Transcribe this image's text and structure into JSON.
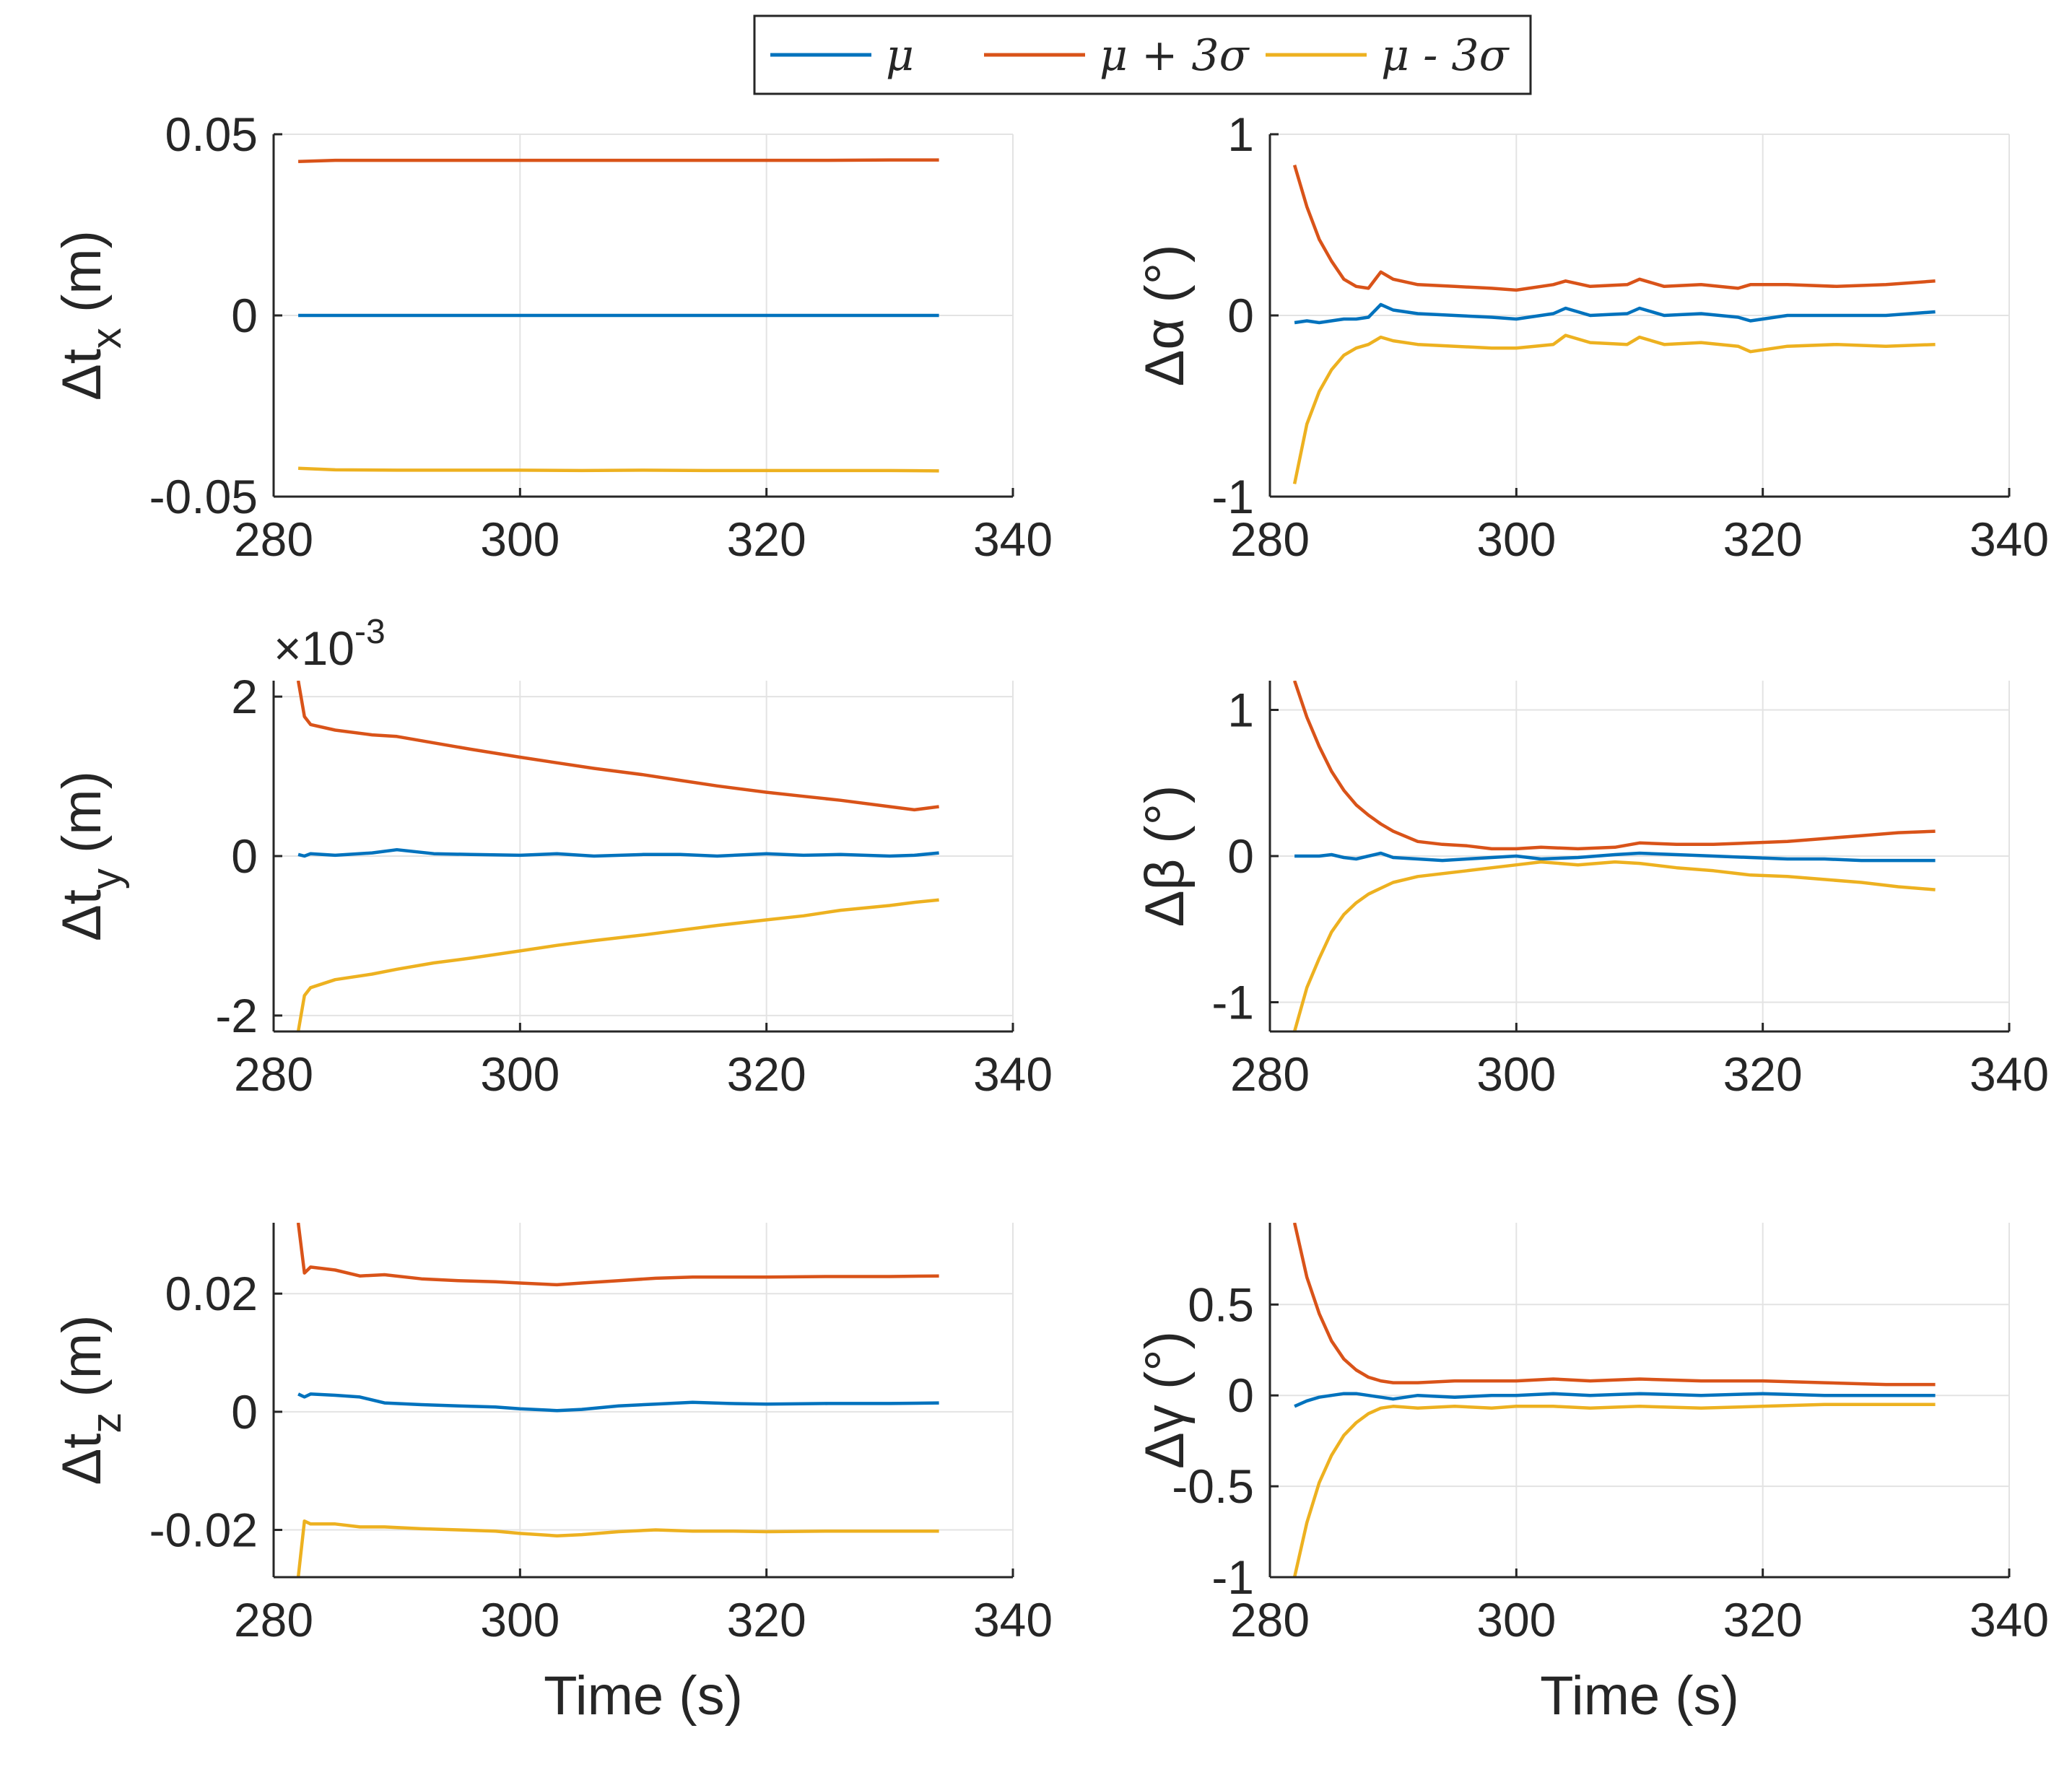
{
  "colors": {
    "mu": "#0072bd",
    "plus": "#d95319",
    "minus": "#edb120",
    "grid": "#e3e3e3",
    "axis": "#262626"
  },
  "legend": {
    "entries": [
      {
        "label": "μ",
        "color": "#0072bd"
      },
      {
        "label": "μ + 3σ",
        "color": "#d95319"
      },
      {
        "label": "μ - 3σ",
        "color": "#edb120"
      }
    ]
  },
  "chart_data": [
    {
      "type": "line",
      "id": "tx",
      "ylabel": "Δt",
      "ylabel_sub": "x",
      "ylabel_unit": " (m)",
      "xlabel": "",
      "xlim": [
        280,
        340
      ],
      "xticks": [
        "280",
        "300",
        "320",
        "340"
      ],
      "ylim": [
        -0.05,
        0.05
      ],
      "yticks": [
        -0.05,
        0,
        0.05
      ],
      "ytick_labels": [
        "-0.05",
        "0",
        "0.05"
      ],
      "grid": true,
      "exponent": "",
      "x": [
        282,
        285,
        290,
        295,
        300,
        305,
        310,
        315,
        320,
        325,
        330,
        334
      ],
      "series": [
        {
          "name": "μ + 3σ",
          "values": [
            0.0425,
            0.0428,
            0.0428,
            0.0428,
            0.0428,
            0.0428,
            0.0428,
            0.0428,
            0.0428,
            0.0428,
            0.0429,
            0.0429
          ]
        },
        {
          "name": "μ",
          "values": [
            0,
            0,
            0,
            0,
            0,
            0,
            0,
            0,
            0,
            0,
            0,
            0
          ]
        },
        {
          "name": "μ - 3σ",
          "values": [
            -0.0422,
            -0.0426,
            -0.0427,
            -0.0427,
            -0.0427,
            -0.0428,
            -0.0427,
            -0.0428,
            -0.0428,
            -0.0428,
            -0.0428,
            -0.0429
          ]
        }
      ]
    },
    {
      "type": "line",
      "id": "alpha",
      "ylabel": "Δα (°)",
      "ylabel_sub": "",
      "ylabel_unit": "",
      "xlabel": "",
      "xlim": [
        280,
        340
      ],
      "xticks": [
        "280",
        "300",
        "320",
        "340"
      ],
      "ylim": [
        -1,
        1
      ],
      "yticks": [
        -1,
        0,
        1
      ],
      "ytick_labels": [
        "-1",
        "0",
        "1"
      ],
      "grid": true,
      "exponent": "",
      "x": [
        282,
        283,
        284,
        285,
        286,
        287,
        288,
        289,
        290,
        292,
        295,
        298,
        300,
        303,
        304,
        306,
        309,
        310,
        312,
        315,
        318,
        319,
        322,
        326,
        330,
        334
      ],
      "series": [
        {
          "name": "μ + 3σ",
          "values": [
            0.83,
            0.6,
            0.42,
            0.3,
            0.2,
            0.16,
            0.15,
            0.24,
            0.2,
            0.17,
            0.16,
            0.15,
            0.14,
            0.17,
            0.19,
            0.16,
            0.17,
            0.2,
            0.16,
            0.17,
            0.15,
            0.17,
            0.17,
            0.16,
            0.17,
            0.19
          ]
        },
        {
          "name": "μ",
          "values": [
            -0.04,
            -0.03,
            -0.04,
            -0.03,
            -0.02,
            -0.02,
            -0.01,
            0.06,
            0.03,
            0.01,
            0.0,
            -0.01,
            -0.02,
            0.01,
            0.04,
            0.0,
            0.01,
            0.04,
            0.0,
            0.01,
            -0.01,
            -0.03,
            0.0,
            0.0,
            0.0,
            0.02
          ]
        },
        {
          "name": "μ - 3σ",
          "values": [
            -0.93,
            -0.6,
            -0.42,
            -0.3,
            -0.22,
            -0.18,
            -0.16,
            -0.12,
            -0.14,
            -0.16,
            -0.17,
            -0.18,
            -0.18,
            -0.16,
            -0.11,
            -0.15,
            -0.16,
            -0.12,
            -0.16,
            -0.15,
            -0.17,
            -0.2,
            -0.17,
            -0.16,
            -0.17,
            -0.16
          ]
        }
      ]
    },
    {
      "type": "line",
      "id": "ty",
      "ylabel": "Δt",
      "ylabel_sub": "y",
      "ylabel_unit": " (m)",
      "xlabel": "",
      "xlim": [
        280,
        340
      ],
      "xticks": [
        "280",
        "300",
        "320",
        "340"
      ],
      "ylim": [
        -2.2,
        2.2
      ],
      "yticks": [
        -2,
        0,
        2
      ],
      "ytick_labels": [
        "-2",
        "0",
        "2"
      ],
      "grid": true,
      "exponent": "×10-3",
      "x": [
        282,
        282.5,
        283,
        285,
        288,
        290,
        293,
        296,
        300,
        303,
        306,
        310,
        313,
        316,
        320,
        323,
        326,
        330,
        332,
        334
      ],
      "series": [
        {
          "name": "μ + 3σ",
          "values": [
            2.2,
            1.75,
            1.65,
            1.58,
            1.52,
            1.5,
            1.42,
            1.34,
            1.24,
            1.17,
            1.1,
            1.02,
            0.95,
            0.88,
            0.8,
            0.75,
            0.7,
            0.62,
            0.58,
            0.62
          ]
        },
        {
          "name": "μ",
          "values": [
            0.02,
            0.0,
            0.03,
            0.01,
            0.04,
            0.08,
            0.03,
            0.02,
            0.01,
            0.03,
            0.0,
            0.02,
            0.02,
            0.0,
            0.03,
            0.01,
            0.02,
            0.0,
            0.01,
            0.04
          ]
        },
        {
          "name": "μ - 3σ",
          "values": [
            -2.2,
            -1.75,
            -1.65,
            -1.55,
            -1.48,
            -1.42,
            -1.34,
            -1.28,
            -1.19,
            -1.12,
            -1.06,
            -0.99,
            -0.93,
            -0.87,
            -0.8,
            -0.75,
            -0.68,
            -0.62,
            -0.58,
            -0.55
          ]
        }
      ]
    },
    {
      "type": "line",
      "id": "beta",
      "ylabel": "Δβ (°)",
      "ylabel_sub": "",
      "ylabel_unit": "",
      "xlabel": "",
      "xlim": [
        280,
        340
      ],
      "xticks": [
        "280",
        "300",
        "320",
        "340"
      ],
      "ylim": [
        -1.2,
        1.2
      ],
      "yticks": [
        -1,
        0,
        1
      ],
      "ytick_labels": [
        "-1",
        "0",
        "1"
      ],
      "grid": true,
      "exponent": "",
      "x": [
        282,
        283,
        284,
        285,
        286,
        287,
        288,
        289,
        290,
        292,
        294,
        296,
        298,
        300,
        302,
        305,
        308,
        310,
        313,
        316,
        319,
        322,
        325,
        328,
        331,
        334
      ],
      "series": [
        {
          "name": "μ + 3σ",
          "values": [
            1.2,
            0.95,
            0.75,
            0.58,
            0.45,
            0.35,
            0.28,
            0.22,
            0.17,
            0.1,
            0.08,
            0.07,
            0.05,
            0.05,
            0.06,
            0.05,
            0.06,
            0.09,
            0.08,
            0.08,
            0.09,
            0.1,
            0.12,
            0.14,
            0.16,
            0.17
          ]
        },
        {
          "name": "μ",
          "values": [
            0.0,
            0.0,
            0.0,
            0.01,
            -0.01,
            -0.02,
            0.0,
            0.02,
            -0.01,
            -0.02,
            -0.03,
            -0.02,
            -0.01,
            0.0,
            -0.02,
            -0.01,
            0.01,
            0.02,
            0.01,
            0.0,
            -0.01,
            -0.02,
            -0.02,
            -0.03,
            -0.03,
            -0.03
          ]
        },
        {
          "name": "μ - 3σ",
          "values": [
            -1.2,
            -0.9,
            -0.7,
            -0.52,
            -0.4,
            -0.32,
            -0.26,
            -0.22,
            -0.18,
            -0.14,
            -0.12,
            -0.1,
            -0.08,
            -0.06,
            -0.04,
            -0.06,
            -0.04,
            -0.05,
            -0.08,
            -0.1,
            -0.13,
            -0.14,
            -0.16,
            -0.18,
            -0.21,
            -0.23
          ]
        }
      ]
    },
    {
      "type": "line",
      "id": "tz",
      "ylabel": "Δt",
      "ylabel_sub": "z",
      "ylabel_unit": " (m)",
      "xlabel": "Time (s)",
      "xlim": [
        280,
        340
      ],
      "xticks": [
        "280",
        "300",
        "320",
        "340"
      ],
      "ylim": [
        -0.028,
        0.032
      ],
      "yticks": [
        -0.02,
        0,
        0.02
      ],
      "ytick_labels": [
        "-0.02",
        "0",
        "0.02"
      ],
      "grid": true,
      "exponent": "",
      "x": [
        282,
        282.5,
        283,
        285,
        287,
        289,
        292,
        295,
        298,
        300,
        303,
        305,
        308,
        311,
        314,
        317,
        320,
        325,
        330,
        334
      ],
      "series": [
        {
          "name": "μ + 3σ",
          "values": [
            0.032,
            0.0235,
            0.0245,
            0.024,
            0.023,
            0.0232,
            0.0225,
            0.0222,
            0.022,
            0.0218,
            0.0215,
            0.0218,
            0.0222,
            0.0226,
            0.0228,
            0.0228,
            0.0228,
            0.0229,
            0.0229,
            0.023
          ]
        },
        {
          "name": "μ",
          "values": [
            0.003,
            0.0025,
            0.003,
            0.0028,
            0.0025,
            0.0015,
            0.0012,
            0.001,
            0.0008,
            0.0005,
            0.0002,
            0.0004,
            0.001,
            0.0013,
            0.0016,
            0.0014,
            0.0013,
            0.0014,
            0.0014,
            0.0015
          ]
        },
        {
          "name": "μ - 3σ",
          "values": [
            -0.028,
            -0.0185,
            -0.019,
            -0.019,
            -0.0195,
            -0.0195,
            -0.0198,
            -0.02,
            -0.0202,
            -0.0206,
            -0.021,
            -0.0208,
            -0.0203,
            -0.02,
            -0.0202,
            -0.0202,
            -0.0203,
            -0.0202,
            -0.0202,
            -0.0202
          ]
        }
      ]
    },
    {
      "type": "line",
      "id": "gamma",
      "ylabel": "Δγ (°)",
      "ylabel_sub": "",
      "ylabel_unit": "",
      "xlabel": "Time (s)",
      "xlim": [
        280,
        340
      ],
      "xticks": [
        "280",
        "300",
        "320",
        "340"
      ],
      "ylim": [
        -1,
        0.95
      ],
      "yticks": [
        -1,
        -0.5,
        0,
        0.5
      ],
      "ytick_labels": [
        "-1",
        "-0.5",
        "0",
        "0.5"
      ],
      "grid": true,
      "exponent": "",
      "x": [
        282,
        283,
        284,
        285,
        286,
        287,
        288,
        289,
        290,
        292,
        295,
        298,
        300,
        303,
        306,
        310,
        315,
        320,
        325,
        330,
        334
      ],
      "series": [
        {
          "name": "μ + 3σ",
          "values": [
            0.95,
            0.65,
            0.45,
            0.3,
            0.2,
            0.14,
            0.1,
            0.08,
            0.07,
            0.07,
            0.08,
            0.08,
            0.08,
            0.09,
            0.08,
            0.09,
            0.08,
            0.08,
            0.07,
            0.06,
            0.06
          ]
        },
        {
          "name": "μ",
          "values": [
            -0.06,
            -0.03,
            -0.01,
            0.0,
            0.01,
            0.01,
            0.0,
            -0.01,
            -0.02,
            0.0,
            -0.01,
            0.0,
            0.0,
            0.01,
            0.0,
            0.01,
            0.0,
            0.01,
            0.0,
            0.0,
            0.0
          ]
        },
        {
          "name": "μ - 3σ",
          "values": [
            -1.0,
            -0.7,
            -0.48,
            -0.33,
            -0.22,
            -0.15,
            -0.1,
            -0.07,
            -0.06,
            -0.07,
            -0.06,
            -0.07,
            -0.06,
            -0.06,
            -0.07,
            -0.06,
            -0.07,
            -0.06,
            -0.05,
            -0.05,
            -0.05
          ]
        }
      ]
    }
  ]
}
